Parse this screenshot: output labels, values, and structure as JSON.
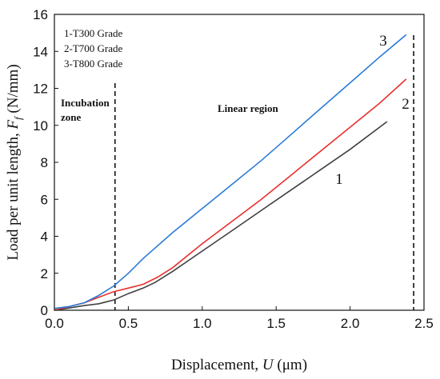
{
  "chart_data": {
    "type": "line",
    "xlabel": "Displacement, U (μm)",
    "xlabel_parts": [
      "Displacement, ",
      "U",
      " (μm)"
    ],
    "ylabel": "Load per unit length, Ff (N/mm)",
    "ylabel_parts": [
      "Load per unit length, ",
      "F",
      "f",
      " (N/mm)"
    ],
    "xlim": [
      0,
      2.5
    ],
    "ylim": [
      0,
      16
    ],
    "xticks": [
      "0.0",
      "0.5",
      "1.0",
      "1.5",
      "2.0",
      "2.5"
    ],
    "yticks": [
      "0",
      "2",
      "4",
      "6",
      "8",
      "10",
      "12",
      "14",
      "16"
    ],
    "grid": false,
    "legend": {
      "placement": "top-left",
      "entries": [
        "1-T300 Grade",
        "2-T700 Grade",
        "3-T800 Grade"
      ]
    },
    "annotations": {
      "incubation": [
        "Incubation",
        "zone"
      ],
      "linear": "Linear region"
    },
    "vlines": [
      0.41,
      2.43
    ],
    "series": [
      {
        "label": "1",
        "color": "#404040",
        "x": [
          0.0,
          0.1,
          0.2,
          0.3,
          0.4,
          0.5,
          0.6,
          0.68,
          0.8,
          1.0,
          1.2,
          1.4,
          1.6,
          1.8,
          2.0,
          2.25
        ],
        "y": [
          0.0,
          0.12,
          0.25,
          0.35,
          0.55,
          0.9,
          1.2,
          1.5,
          2.1,
          3.2,
          4.3,
          5.4,
          6.5,
          7.6,
          8.7,
          10.2
        ]
      },
      {
        "label": "2",
        "color": "#e8302e",
        "x": [
          0.0,
          0.1,
          0.2,
          0.3,
          0.4,
          0.5,
          0.6,
          0.7,
          0.8,
          1.0,
          1.2,
          1.4,
          1.6,
          1.8,
          2.0,
          2.2,
          2.38
        ],
        "y": [
          0.0,
          0.2,
          0.4,
          0.7,
          1.0,
          1.2,
          1.4,
          1.8,
          2.3,
          3.6,
          4.8,
          6.0,
          7.3,
          8.6,
          9.9,
          11.2,
          12.5
        ]
      },
      {
        "label": "3",
        "color": "#2b7bd6",
        "x": [
          0.0,
          0.1,
          0.2,
          0.3,
          0.4,
          0.5,
          0.6,
          0.8,
          1.0,
          1.2,
          1.4,
          1.6,
          1.8,
          2.0,
          2.2,
          2.38
        ],
        "y": [
          0.1,
          0.2,
          0.4,
          0.8,
          1.3,
          2.0,
          2.8,
          4.2,
          5.5,
          6.8,
          8.1,
          9.5,
          10.9,
          12.3,
          13.7,
          14.9
        ]
      }
    ]
  }
}
